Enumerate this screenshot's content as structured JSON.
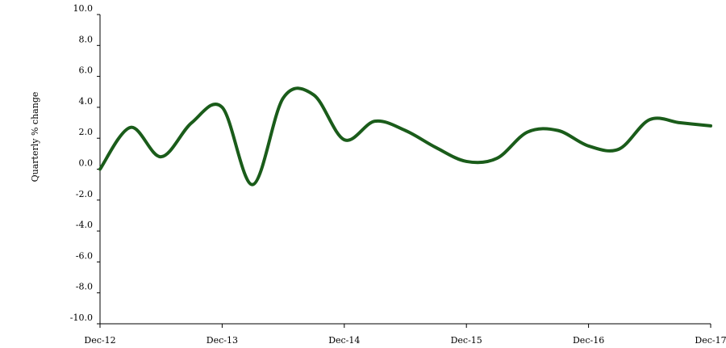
{
  "chart_data": {
    "type": "line",
    "title": "",
    "xlabel": "",
    "ylabel": "Quarterly % change",
    "ylim": [
      -10,
      10
    ],
    "y_ticks": [
      "10.0",
      "8.0",
      "6.0",
      "4.0",
      "2.0",
      "0.0",
      "-2.0",
      "-4.0",
      "-6.0",
      "-8.0",
      "-10.0"
    ],
    "x_ticks": [
      "Dec-12",
      "Dec-13",
      "Dec-14",
      "Dec-15",
      "Dec-16",
      "Dec-17"
    ],
    "grid": false,
    "legend": "none",
    "series": [
      {
        "color": "#1a5c1a",
        "x": [
          "Dec-12",
          "Mar-13",
          "Jun-13",
          "Sep-13",
          "Dec-13",
          "Mar-14",
          "Jun-14",
          "Sep-14",
          "Dec-14",
          "Mar-15",
          "Jun-15",
          "Sep-15",
          "Dec-15",
          "Mar-16",
          "Jun-16",
          "Sep-16",
          "Dec-16",
          "Mar-17",
          "Jun-17",
          "Sep-17",
          "Dec-17"
        ],
        "values": [
          0.0,
          2.7,
          0.8,
          3.0,
          4.0,
          -1.0,
          4.6,
          4.8,
          1.9,
          3.1,
          2.5,
          1.4,
          0.5,
          0.7,
          2.4,
          2.5,
          1.5,
          1.3,
          3.2,
          3.0,
          2.8
        ]
      }
    ]
  }
}
